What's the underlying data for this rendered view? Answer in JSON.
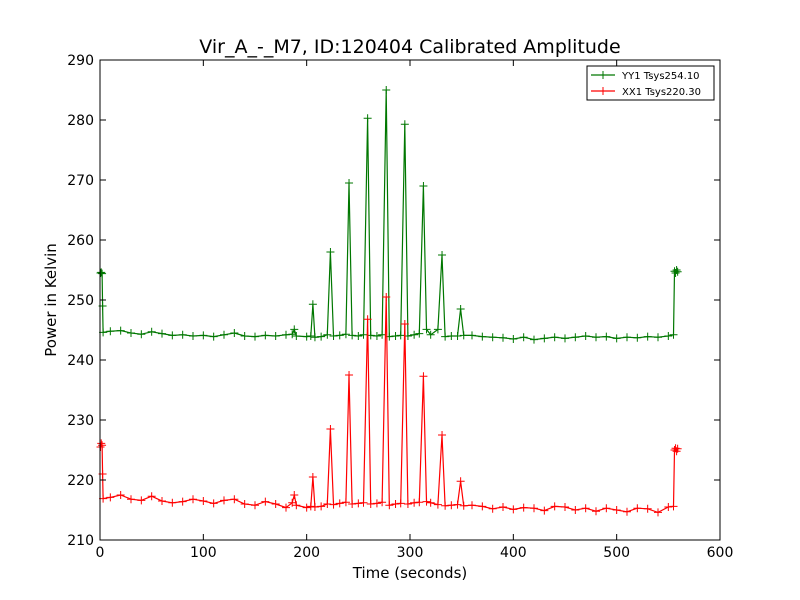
{
  "chart_data": {
    "type": "line",
    "title": "Vir_A_-_M7, ID:120404 Calibrated Amplitude",
    "xlabel": "Time (seconds)",
    "ylabel": "Power in Kelvin",
    "xlim": [
      0,
      600
    ],
    "ylim": [
      210,
      290
    ],
    "xticks": [
      0,
      100,
      200,
      300,
      400,
      500,
      600
    ],
    "yticks": [
      210,
      220,
      230,
      240,
      250,
      260,
      270,
      280,
      290
    ],
    "grid": false,
    "legend_position": "top-right",
    "series": [
      {
        "name": "YY1 Tsys254.10",
        "color": "#007700",
        "marker": "+",
        "points": [
          [
            0.5,
            254.5
          ],
          [
            1.2,
            254.6
          ],
          [
            2.0,
            254.4
          ],
          [
            2.5,
            249.0
          ],
          [
            3.0,
            244.6
          ],
          [
            10,
            244.8
          ],
          [
            20,
            244.9
          ],
          [
            30,
            244.5
          ],
          [
            40,
            244.3
          ],
          [
            50,
            244.7
          ],
          [
            60,
            244.4
          ],
          [
            70,
            244.1
          ],
          [
            80,
            244.2
          ],
          [
            90,
            244.0
          ],
          [
            100,
            244.1
          ],
          [
            110,
            243.9
          ],
          [
            120,
            244.2
          ],
          [
            130,
            244.5
          ],
          [
            140,
            244.0
          ],
          [
            150,
            243.9
          ],
          [
            160,
            244.1
          ],
          [
            170,
            244.0
          ],
          [
            180,
            244.2
          ],
          [
            186,
            244.3
          ],
          [
            188,
            245.1
          ],
          [
            190,
            244.0
          ],
          [
            200,
            243.9
          ],
          [
            204,
            244.0
          ],
          [
            206,
            249.3
          ],
          [
            208,
            243.8
          ],
          [
            214,
            243.9
          ],
          [
            220,
            244.2
          ],
          [
            223,
            258.0
          ],
          [
            226,
            244.0
          ],
          [
            232,
            244.1
          ],
          [
            238,
            244.3
          ],
          [
            241,
            269.5
          ],
          [
            244,
            244.1
          ],
          [
            250,
            244.0
          ],
          [
            255,
            244.2
          ],
          [
            259,
            280.3
          ],
          [
            262,
            244.1
          ],
          [
            268,
            244.0
          ],
          [
            273,
            244.2
          ],
          [
            277,
            285.0
          ],
          [
            280,
            243.9
          ],
          [
            286,
            244.0
          ],
          [
            291,
            244.1
          ],
          [
            295,
            279.3
          ],
          [
            298,
            244.0
          ],
          [
            304,
            244.2
          ],
          [
            309,
            244.4
          ],
          [
            313,
            269.0
          ],
          [
            316,
            245.1
          ],
          [
            320,
            244.2
          ],
          [
            327,
            245.1
          ],
          [
            331,
            257.5
          ],
          [
            334,
            243.9
          ],
          [
            340,
            244.0
          ],
          [
            346,
            244.0
          ],
          [
            349,
            248.5
          ],
          [
            352,
            244.1
          ],
          [
            360,
            244.1
          ],
          [
            370,
            243.9
          ],
          [
            380,
            243.8
          ],
          [
            390,
            243.7
          ],
          [
            400,
            243.5
          ],
          [
            410,
            243.8
          ],
          [
            420,
            243.4
          ],
          [
            430,
            243.6
          ],
          [
            440,
            243.8
          ],
          [
            450,
            243.6
          ],
          [
            460,
            243.8
          ],
          [
            470,
            244.0
          ],
          [
            480,
            243.8
          ],
          [
            490,
            243.9
          ],
          [
            500,
            243.6
          ],
          [
            510,
            243.8
          ],
          [
            520,
            243.7
          ],
          [
            530,
            243.9
          ],
          [
            540,
            243.8
          ],
          [
            550,
            244.0
          ],
          [
            555,
            244.2
          ],
          [
            556,
            254.8
          ],
          [
            557,
            254.5
          ],
          [
            558,
            255.0
          ],
          [
            559,
            254.7
          ]
        ]
      },
      {
        "name": "XX1 Tsys220.30",
        "color": "#ff0000",
        "marker": "+",
        "points": [
          [
            0.5,
            225.5
          ],
          [
            1.2,
            226.1
          ],
          [
            2.0,
            225.8
          ],
          [
            2.5,
            221.0
          ],
          [
            3.0,
            216.9
          ],
          [
            10,
            217.1
          ],
          [
            20,
            217.5
          ],
          [
            30,
            216.8
          ],
          [
            40,
            216.6
          ],
          [
            50,
            217.3
          ],
          [
            60,
            216.5
          ],
          [
            70,
            216.2
          ],
          [
            80,
            216.4
          ],
          [
            90,
            216.8
          ],
          [
            100,
            216.5
          ],
          [
            110,
            216.1
          ],
          [
            120,
            216.6
          ],
          [
            130,
            216.8
          ],
          [
            140,
            216.0
          ],
          [
            150,
            215.8
          ],
          [
            160,
            216.4
          ],
          [
            170,
            216.0
          ],
          [
            180,
            215.4
          ],
          [
            186,
            216.2
          ],
          [
            188,
            217.5
          ],
          [
            190,
            215.8
          ],
          [
            200,
            215.4
          ],
          [
            204,
            215.6
          ],
          [
            206,
            220.5
          ],
          [
            208,
            215.5
          ],
          [
            214,
            215.6
          ],
          [
            220,
            216.0
          ],
          [
            223,
            228.5
          ],
          [
            226,
            215.9
          ],
          [
            232,
            216.1
          ],
          [
            238,
            216.3
          ],
          [
            241,
            237.5
          ],
          [
            244,
            216.0
          ],
          [
            250,
            216.1
          ],
          [
            255,
            216.2
          ],
          [
            259,
            246.8
          ],
          [
            262,
            216.0
          ],
          [
            268,
            216.1
          ],
          [
            273,
            216.3
          ],
          [
            277,
            250.5
          ],
          [
            280,
            215.8
          ],
          [
            286,
            216.0
          ],
          [
            291,
            216.1
          ],
          [
            295,
            246.0
          ],
          [
            298,
            216.0
          ],
          [
            304,
            216.2
          ],
          [
            309,
            216.3
          ],
          [
            313,
            237.3
          ],
          [
            316,
            216.4
          ],
          [
            320,
            216.2
          ],
          [
            327,
            215.9
          ],
          [
            331,
            227.5
          ],
          [
            334,
            215.7
          ],
          [
            340,
            215.8
          ],
          [
            346,
            215.9
          ],
          [
            349,
            219.8
          ],
          [
            352,
            215.7
          ],
          [
            360,
            215.8
          ],
          [
            370,
            215.6
          ],
          [
            380,
            215.2
          ],
          [
            390,
            215.5
          ],
          [
            400,
            215.1
          ],
          [
            410,
            215.4
          ],
          [
            420,
            215.3
          ],
          [
            430,
            214.9
          ],
          [
            440,
            215.6
          ],
          [
            450,
            215.5
          ],
          [
            460,
            215.0
          ],
          [
            470,
            215.3
          ],
          [
            480,
            214.8
          ],
          [
            490,
            215.3
          ],
          [
            500,
            215.0
          ],
          [
            510,
            214.7
          ],
          [
            520,
            215.3
          ],
          [
            530,
            215.2
          ],
          [
            540,
            214.6
          ],
          [
            550,
            215.5
          ],
          [
            555,
            215.6
          ],
          [
            556,
            225.0
          ],
          [
            557,
            225.3
          ],
          [
            558,
            224.8
          ],
          [
            559,
            225.2
          ]
        ]
      }
    ]
  }
}
